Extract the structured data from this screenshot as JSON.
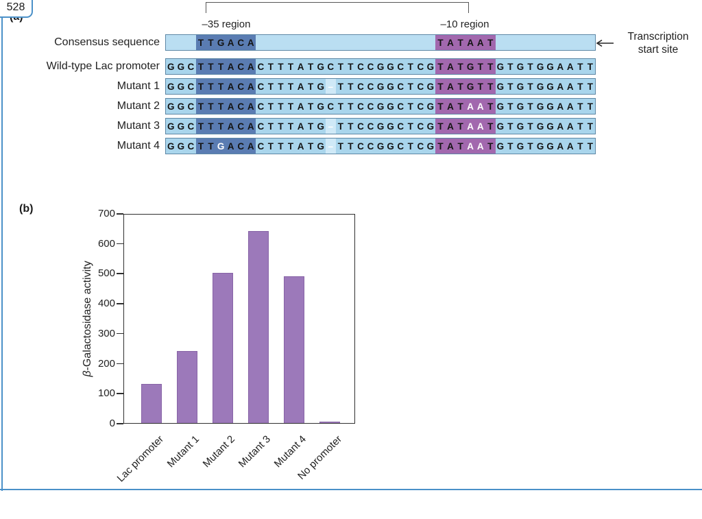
{
  "page": {
    "number": "528",
    "accent_color": "#4a90c8"
  },
  "panel_a": {
    "label": "(a)",
    "minus35_label": "–35 region",
    "minus10_label": "–10 region",
    "tss_line1": "Transcription",
    "tss_line2": "start site",
    "arrow_icon": "left-arrow",
    "n_cells": 43,
    "region35": [
      3,
      8
    ],
    "region10": [
      27,
      32
    ],
    "consensus": {
      "label": "Consensus sequence",
      "minus35_seq": "TTGACA",
      "minus10_seq": "TATAAT"
    },
    "rows": [
      {
        "label": "Wild-type Lac promoter",
        "seq": "GGCTTTACACTTTATGCTTCCGGCTCGTATGTTGTGTGGAATT",
        "white_positions": [],
        "gap_positions": []
      },
      {
        "label": "Mutant 1",
        "seq": "GGCTTTACACTTTATG-TTCCGGCTCGTATGTTGTGTGGAATT",
        "white_positions": [],
        "gap_positions": [
          16
        ]
      },
      {
        "label": "Mutant 2",
        "seq": "GGCTTTACACTTTATGCTTCCGGCTCGTATAATGTGTGGAATT",
        "white_positions": [
          30,
          31
        ],
        "gap_positions": []
      },
      {
        "label": "Mutant 3",
        "seq": "GGCTTTACACTTTATG-TTCCGGCTCGTATAATGTGTGGAATT",
        "white_positions": [
          30,
          31
        ],
        "gap_positions": [
          16
        ]
      },
      {
        "label": "Mutant 4",
        "seq": "GGCTTGACACTTTATG-TTCCGGCTCGTATAATGTGTGGAATT",
        "white_positions": [
          5,
          30,
          31
        ],
        "gap_positions": [
          16
        ]
      }
    ],
    "colors": {
      "seq_bg": "#a9d5ec",
      "consensus_bg": "#badef2",
      "region35_bg": "#5a7cb2",
      "region10_bg": "#a268ae",
      "gap_bg": "#cfe9f7",
      "gap_dash_color": "#ffffff",
      "letter_color": "#141414",
      "white_letter_color": "#ffffff"
    }
  },
  "chart_data": {
    "type": "bar",
    "panel_label": "(b)",
    "categories": [
      "Lac promoter",
      "Mutant 1",
      "Mutant 2",
      "Mutant 3",
      "Mutant 4",
      "No promoter"
    ],
    "values": [
      130,
      240,
      500,
      640,
      490,
      5
    ],
    "ylabel_symbol": "β",
    "ylabel_rest": "-Galactosidase activity",
    "ylim": [
      0,
      700
    ],
    "yticks": [
      0,
      100,
      200,
      300,
      400,
      500,
      600,
      700
    ],
    "bar_color": "#9c79ba",
    "grid": false,
    "legend": false
  }
}
